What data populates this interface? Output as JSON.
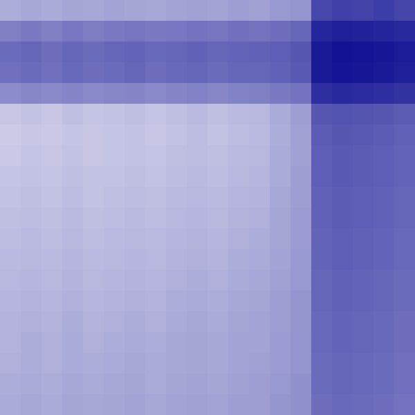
{
  "chart_data": {
    "type": "heatmap",
    "tick_labels": false,
    "color": "#00008b",
    "zlim": [
      0,
      1
    ],
    "cells": [
      [
        0.32,
        0.34,
        0.33,
        0.35,
        0.34,
        0.36,
        0.35,
        0.34,
        0.36,
        0.37,
        0.36,
        0.38,
        0.37,
        0.4,
        0.42,
        0.72,
        0.75,
        0.74,
        0.76,
        0.73
      ],
      [
        0.5,
        0.52,
        0.5,
        0.53,
        0.51,
        0.52,
        0.54,
        0.52,
        0.53,
        0.55,
        0.54,
        0.56,
        0.55,
        0.57,
        0.6,
        0.85,
        0.88,
        0.87,
        0.86,
        0.84
      ],
      [
        0.58,
        0.6,
        0.57,
        0.6,
        0.58,
        0.6,
        0.61,
        0.59,
        0.6,
        0.62,
        0.6,
        0.61,
        0.62,
        0.63,
        0.66,
        0.9,
        0.93,
        0.92,
        0.91,
        0.89
      ],
      [
        0.56,
        0.58,
        0.56,
        0.59,
        0.57,
        0.58,
        0.6,
        0.57,
        0.59,
        0.6,
        0.58,
        0.6,
        0.6,
        0.62,
        0.65,
        0.9,
        0.92,
        0.91,
        0.9,
        0.88
      ],
      [
        0.45,
        0.47,
        0.46,
        0.48,
        0.46,
        0.47,
        0.48,
        0.46,
        0.48,
        0.49,
        0.47,
        0.49,
        0.5,
        0.52,
        0.55,
        0.82,
        0.84,
        0.83,
        0.82,
        0.8
      ],
      [
        0.22,
        0.24,
        0.22,
        0.25,
        0.23,
        0.24,
        0.25,
        0.23,
        0.25,
        0.27,
        0.25,
        0.27,
        0.28,
        0.33,
        0.38,
        0.66,
        0.68,
        0.67,
        0.66,
        0.64
      ],
      [
        0.2,
        0.22,
        0.21,
        0.23,
        0.22,
        0.23,
        0.24,
        0.22,
        0.24,
        0.26,
        0.24,
        0.26,
        0.27,
        0.32,
        0.37,
        0.64,
        0.66,
        0.65,
        0.64,
        0.62
      ],
      [
        0.21,
        0.23,
        0.22,
        0.24,
        0.22,
        0.23,
        0.24,
        0.23,
        0.25,
        0.26,
        0.25,
        0.27,
        0.28,
        0.33,
        0.37,
        0.63,
        0.65,
        0.64,
        0.63,
        0.61
      ],
      [
        0.23,
        0.24,
        0.23,
        0.25,
        0.24,
        0.24,
        0.25,
        0.24,
        0.26,
        0.27,
        0.26,
        0.28,
        0.29,
        0.33,
        0.38,
        0.63,
        0.65,
        0.64,
        0.63,
        0.61
      ],
      [
        0.24,
        0.25,
        0.24,
        0.26,
        0.24,
        0.25,
        0.26,
        0.25,
        0.27,
        0.28,
        0.27,
        0.29,
        0.3,
        0.34,
        0.38,
        0.62,
        0.64,
        0.63,
        0.62,
        0.6
      ],
      [
        0.25,
        0.26,
        0.25,
        0.27,
        0.25,
        0.26,
        0.27,
        0.26,
        0.28,
        0.29,
        0.28,
        0.3,
        0.31,
        0.35,
        0.39,
        0.62,
        0.64,
        0.63,
        0.62,
        0.6
      ],
      [
        0.26,
        0.27,
        0.26,
        0.28,
        0.26,
        0.27,
        0.28,
        0.27,
        0.29,
        0.3,
        0.29,
        0.31,
        0.32,
        0.35,
        0.39,
        0.61,
        0.63,
        0.62,
        0.61,
        0.59
      ],
      [
        0.27,
        0.28,
        0.27,
        0.29,
        0.27,
        0.28,
        0.29,
        0.28,
        0.3,
        0.31,
        0.3,
        0.32,
        0.33,
        0.36,
        0.4,
        0.61,
        0.63,
        0.62,
        0.61,
        0.59
      ],
      [
        0.28,
        0.29,
        0.28,
        0.3,
        0.28,
        0.29,
        0.3,
        0.29,
        0.31,
        0.32,
        0.31,
        0.33,
        0.34,
        0.37,
        0.4,
        0.6,
        0.62,
        0.61,
        0.6,
        0.58
      ],
      [
        0.29,
        0.3,
        0.29,
        0.31,
        0.29,
        0.3,
        0.31,
        0.3,
        0.32,
        0.33,
        0.32,
        0.34,
        0.35,
        0.38,
        0.41,
        0.6,
        0.62,
        0.61,
        0.6,
        0.58
      ],
      [
        0.3,
        0.31,
        0.3,
        0.32,
        0.3,
        0.31,
        0.32,
        0.31,
        0.33,
        0.34,
        0.33,
        0.35,
        0.36,
        0.38,
        0.41,
        0.59,
        0.61,
        0.6,
        0.59,
        0.57
      ],
      [
        0.3,
        0.32,
        0.31,
        0.33,
        0.31,
        0.32,
        0.33,
        0.32,
        0.34,
        0.35,
        0.34,
        0.36,
        0.36,
        0.39,
        0.42,
        0.59,
        0.61,
        0.6,
        0.59,
        0.57
      ],
      [
        0.31,
        0.32,
        0.31,
        0.33,
        0.32,
        0.33,
        0.34,
        0.33,
        0.34,
        0.35,
        0.34,
        0.36,
        0.37,
        0.39,
        0.42,
        0.58,
        0.6,
        0.59,
        0.58,
        0.56
      ],
      [
        0.32,
        0.33,
        0.32,
        0.34,
        0.33,
        0.34,
        0.35,
        0.33,
        0.35,
        0.36,
        0.35,
        0.37,
        0.38,
        0.4,
        0.43,
        0.58,
        0.6,
        0.59,
        0.58,
        0.56
      ],
      [
        0.33,
        0.34,
        0.33,
        0.35,
        0.34,
        0.35,
        0.36,
        0.34,
        0.36,
        0.37,
        0.36,
        0.38,
        0.38,
        0.41,
        0.43,
        0.57,
        0.59,
        0.58,
        0.57,
        0.55
      ]
    ]
  }
}
